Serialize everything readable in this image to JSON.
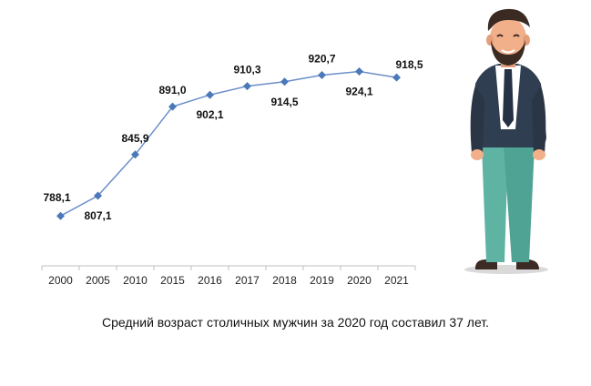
{
  "caption": "Средний возраст столичных мужчин за 2020 год составил 37 лет.",
  "chart_data": {
    "type": "line",
    "categories": [
      "2000",
      "2005",
      "2010",
      "2015",
      "2016",
      "2017",
      "2018",
      "2019",
      "2020",
      "2021"
    ],
    "values": [
      788.1,
      807.1,
      845.9,
      891.0,
      902.1,
      910.3,
      914.5,
      920.7,
      924.1,
      918.5
    ],
    "value_labels": [
      "788,1",
      "807,1",
      "845,9",
      "891,0",
      "902,1",
      "910,3",
      "914,5",
      "920,7",
      "924,1",
      "918,5"
    ],
    "title": "",
    "xlabel": "",
    "ylabel": "",
    "ylim": [
      760,
      940
    ],
    "grid": false,
    "line_color": "#6b8fc9",
    "marker_color": "#4a78b8"
  },
  "illustration": {
    "name": "man-illustration",
    "skin": "#f2b08a",
    "hair": "#3a2a22",
    "jacket": "#2f3e50",
    "shirt": "#ffffff",
    "tie": "#253245",
    "trousers": "#5fb3a3",
    "shoes": "#3b2b24"
  }
}
